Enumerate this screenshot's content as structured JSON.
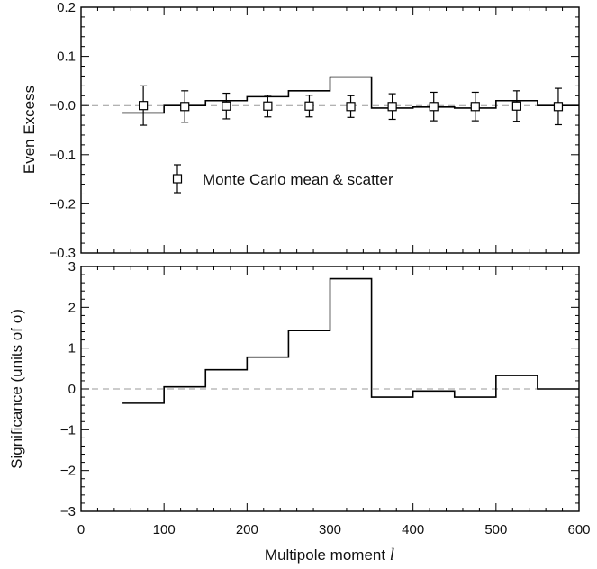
{
  "chart_data": [
    {
      "type": "line",
      "ylabel": "Even Excess",
      "xlim": [
        0,
        600
      ],
      "ylim": [
        -0.3,
        0.2
      ],
      "yticks": [
        -0.3,
        -0.2,
        -0.1,
        0.0,
        0.1,
        0.2
      ],
      "ytick_labels": [
        "−0.3",
        "−0.2",
        "−0.1",
        "−0.0",
        "0.1",
        "0.2"
      ],
      "zero_line": "dashed",
      "series": [
        {
          "style": "step",
          "bin_edges": [
            50,
            100,
            150,
            200,
            250,
            300,
            350,
            400,
            450,
            500,
            550,
            600
          ],
          "values": [
            -0.015,
            0.0,
            0.01,
            0.018,
            0.03,
            0.058,
            -0.005,
            -0.003,
            -0.005,
            0.01,
            0.0
          ]
        },
        {
          "name": "Monte Carlo mean & scatter",
          "style": "errorbar",
          "x": [
            75,
            125,
            175,
            225,
            275,
            325,
            375,
            425,
            475,
            525,
            575
          ],
          "y": [
            0.0,
            -0.002,
            -0.001,
            -0.001,
            -0.001,
            -0.002,
            -0.002,
            -0.002,
            -0.002,
            -0.001,
            -0.002
          ],
          "err": [
            0.04,
            0.032,
            0.026,
            0.022,
            0.022,
            0.022,
            0.026,
            0.029,
            0.029,
            0.031,
            0.037
          ]
        }
      ],
      "legend": {
        "label": "Monte Carlo mean & scatter",
        "placement": "center-left"
      }
    },
    {
      "type": "line",
      "xlabel": "Multipole moment ",
      "xlabel_symbol": "l",
      "ylabel": "Significance (units of σ)",
      "xlim": [
        0,
        600
      ],
      "ylim": [
        -3,
        3
      ],
      "xticks": [
        0,
        100,
        200,
        300,
        400,
        500,
        600
      ],
      "xtick_labels": [
        "0",
        "100",
        "200",
        "300",
        "400",
        "500",
        "600"
      ],
      "yticks": [
        -3,
        -2,
        -1,
        0,
        1,
        2,
        3
      ],
      "ytick_labels": [
        "−3",
        "−2",
        "−1",
        "0",
        "1",
        "2",
        "3"
      ],
      "zero_line": "dashed",
      "series": [
        {
          "style": "step",
          "bin_edges": [
            50,
            100,
            150,
            200,
            250,
            300,
            350,
            400,
            450,
            500,
            550,
            600
          ],
          "values": [
            -0.35,
            0.05,
            0.47,
            0.78,
            1.43,
            2.7,
            -0.2,
            -0.05,
            -0.2,
            0.33,
            0.0
          ]
        }
      ]
    }
  ]
}
